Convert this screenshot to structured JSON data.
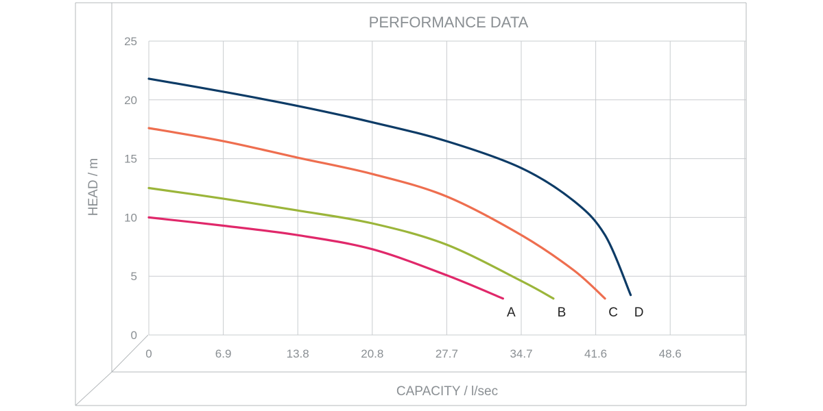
{
  "chart_data": {
    "type": "line",
    "title": "PERFORMANCE DATA",
    "xlabel": "CAPACITY / l/sec",
    "ylabel": "HEAD / m",
    "xticks": [
      "0",
      "6.9",
      "13.8",
      "20.8",
      "27.7",
      "34.7",
      "41.6",
      "48.6"
    ],
    "yticks": [
      "0",
      "5",
      "10",
      "15",
      "20",
      "25"
    ],
    "ylim": [
      0,
      25
    ],
    "grid": true,
    "series": [
      {
        "name": "A",
        "color": "#e0286a",
        "x": [
          0,
          6.9,
          13.8,
          20.8,
          27.7,
          33.0
        ],
        "y": [
          10,
          9.3,
          8.5,
          7.3,
          5.1,
          3.1
        ]
      },
      {
        "name": "B",
        "color": "#9bb53a",
        "x": [
          0,
          6.9,
          13.8,
          20.8,
          27.7,
          34.7,
          37.7
        ],
        "y": [
          12.5,
          11.6,
          10.6,
          9.5,
          7.7,
          4.6,
          3.1
        ]
      },
      {
        "name": "C",
        "color": "#ee6e4f",
        "x": [
          0,
          6.9,
          13.8,
          20.8,
          27.7,
          34.7,
          39.6,
          42.5
        ],
        "y": [
          17.6,
          16.5,
          15.1,
          13.7,
          11.8,
          8.5,
          5.5,
          3.1
        ]
      },
      {
        "name": "D",
        "color": "#0d3b66",
        "x": [
          0,
          6.9,
          13.8,
          20.8,
          27.7,
          34.7,
          39.6,
          42.5,
          44.9
        ],
        "y": [
          21.8,
          20.7,
          19.5,
          18.1,
          16.5,
          14.2,
          11.4,
          8.5,
          3.4
        ]
      }
    ]
  }
}
